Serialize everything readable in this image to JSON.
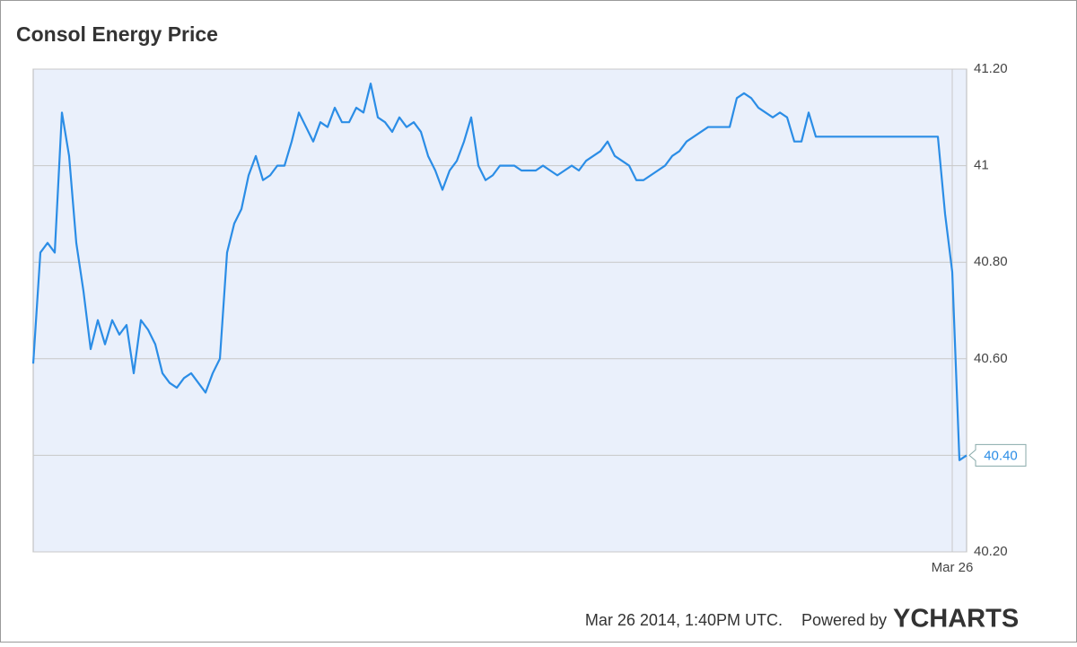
{
  "chart_data": {
    "type": "line",
    "title": "Consol Energy Price",
    "categories": [
      null,
      null,
      null,
      null,
      null,
      null,
      null,
      null,
      null,
      null,
      null,
      null,
      null,
      null,
      null,
      null,
      null,
      null,
      null,
      null,
      null,
      null,
      null,
      null,
      null,
      null,
      null,
      null,
      null,
      null,
      null,
      null,
      null,
      null,
      null,
      null,
      null,
      null,
      null,
      null,
      null,
      null,
      null,
      null,
      null,
      null,
      null,
      null,
      null,
      null,
      null,
      null,
      null,
      null,
      null,
      null,
      null,
      null,
      null,
      null,
      null,
      null,
      null,
      null,
      null,
      null,
      null,
      null,
      null,
      null,
      null,
      null,
      null,
      null,
      null,
      null,
      null,
      null,
      null,
      null,
      null,
      null,
      null,
      null,
      null,
      null,
      null,
      null,
      null,
      null,
      null,
      null,
      null,
      null,
      null,
      null,
      null,
      null,
      null,
      null,
      null,
      null,
      null,
      null,
      null,
      null,
      null,
      null,
      null,
      null,
      null,
      null,
      null,
      null,
      null,
      null,
      null,
      null,
      null,
      null,
      null,
      null,
      null,
      null,
      null,
      null,
      null,
      null,
      "Mar 26",
      null,
      null
    ],
    "values": [
      40.59,
      40.82,
      40.84,
      40.82,
      41.11,
      41.02,
      40.84,
      40.74,
      40.62,
      40.68,
      40.63,
      40.68,
      40.65,
      40.67,
      40.57,
      40.68,
      40.66,
      40.63,
      40.57,
      40.55,
      40.54,
      40.56,
      40.57,
      40.55,
      40.53,
      40.57,
      40.6,
      40.82,
      40.88,
      40.91,
      40.98,
      41.02,
      40.97,
      40.98,
      41.0,
      41.0,
      41.05,
      41.11,
      41.08,
      41.05,
      41.09,
      41.08,
      41.12,
      41.09,
      41.09,
      41.12,
      41.11,
      41.17,
      41.1,
      41.09,
      41.07,
      41.1,
      41.08,
      41.09,
      41.07,
      41.02,
      40.99,
      40.95,
      40.99,
      41.01,
      41.05,
      41.1,
      41.0,
      40.97,
      40.98,
      41.0,
      41.0,
      41.0,
      40.99,
      40.99,
      40.99,
      41.0,
      40.99,
      40.98,
      40.99,
      41.0,
      40.99,
      41.01,
      41.02,
      41.03,
      41.05,
      41.02,
      41.01,
      41.0,
      40.97,
      40.97,
      40.98,
      40.99,
      41.0,
      41.02,
      41.03,
      41.05,
      41.06,
      41.07,
      41.08,
      41.08,
      41.08,
      41.08,
      41.14,
      41.15,
      41.14,
      41.12,
      41.11,
      41.1,
      41.11,
      41.1,
      41.05,
      41.05,
      41.11,
      41.06,
      41.06,
      41.06,
      41.06,
      41.06,
      41.06,
      41.06,
      41.06,
      41.06,
      41.06,
      41.06,
      41.06,
      41.06,
      41.06,
      41.06,
      41.06,
      41.06,
      41.06,
      40.9,
      40.78,
      40.39,
      40.4
    ],
    "value_labels": [
      null,
      null,
      null,
      null,
      null,
      null,
      null,
      null,
      null,
      null,
      null,
      null,
      null,
      null,
      null,
      null,
      null,
      null,
      null,
      null,
      null,
      null,
      null,
      null,
      null,
      null,
      null,
      null,
      null,
      null,
      null,
      null,
      null,
      null,
      null,
      null,
      null,
      null,
      null,
      null,
      null,
      null,
      null,
      null,
      null,
      null,
      null,
      null,
      null,
      null,
      null,
      null,
      null,
      null,
      null,
      null,
      null,
      null,
      null,
      null,
      null,
      null,
      null,
      null,
      null,
      null,
      null,
      null,
      null,
      null,
      null,
      null,
      null,
      null,
      null,
      null,
      null,
      null,
      null,
      null,
      null,
      null,
      null,
      null,
      null,
      null,
      null,
      null,
      null,
      null,
      null,
      null,
      null,
      null,
      null,
      null,
      null,
      null,
      null,
      null,
      null,
      null,
      null,
      null,
      null,
      null,
      null,
      null,
      null,
      null,
      null,
      null,
      null,
      null,
      null,
      null,
      null,
      null,
      null,
      null,
      null,
      null,
      null,
      null,
      null,
      null,
      null,
      null,
      null,
      null,
      "40.40"
    ],
    "color": "#2b8de6",
    "ylim": [
      40.2,
      41.2
    ],
    "yticks": [
      {
        "value": 40.2,
        "label": "40.20"
      },
      {
        "value": 40.4,
        "label": "40.40"
      },
      {
        "value": 40.6,
        "label": "40.60"
      },
      {
        "value": 40.8,
        "label": "40.80"
      },
      41,
      {
        "value": 41.2,
        "label": "41.20"
      }
    ],
    "grid": true,
    "footer": {
      "timestamp": "Mar 26 2014, 1:40PM UTC.",
      "powered_by": "Powered by",
      "brand": "YCHARTS"
    }
  }
}
